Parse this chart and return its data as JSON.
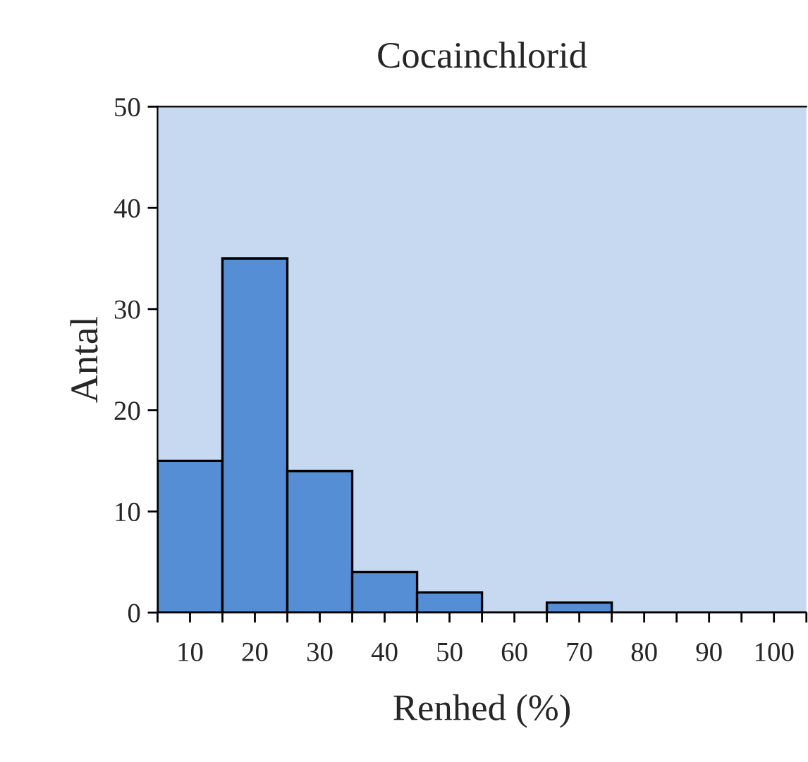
{
  "chart_data": {
    "type": "histogram",
    "title": "Cocainchlorid",
    "xlabel": "Renhed (%)",
    "ylabel": "Antal",
    "bins": [
      5,
      15,
      25,
      35,
      45,
      55,
      65,
      75,
      85,
      95,
      105
    ],
    "values": [
      15,
      35,
      14,
      4,
      2,
      0,
      1,
      0,
      0,
      0
    ],
    "color": "#558ed5",
    "xlim": [
      5,
      105
    ],
    "xticks": [
      {
        "value": 5,
        "label": null
      },
      10,
      {
        "value": 15,
        "label": null
      },
      20,
      {
        "value": 25,
        "label": null
      },
      30,
      {
        "value": 35,
        "label": null
      },
      40,
      {
        "value": 45,
        "label": null
      },
      50,
      {
        "value": 55,
        "label": null
      },
      60,
      {
        "value": 65,
        "label": null
      },
      70,
      {
        "value": 75,
        "label": null
      },
      80,
      {
        "value": 85,
        "label": null
      },
      90,
      {
        "value": 95,
        "label": null
      },
      100,
      {
        "value": 105,
        "label": null
      }
    ],
    "ylim": [
      0,
      50
    ],
    "yticks": [
      0,
      10,
      20,
      30,
      40,
      50
    ],
    "grid": false,
    "legend": false
  }
}
